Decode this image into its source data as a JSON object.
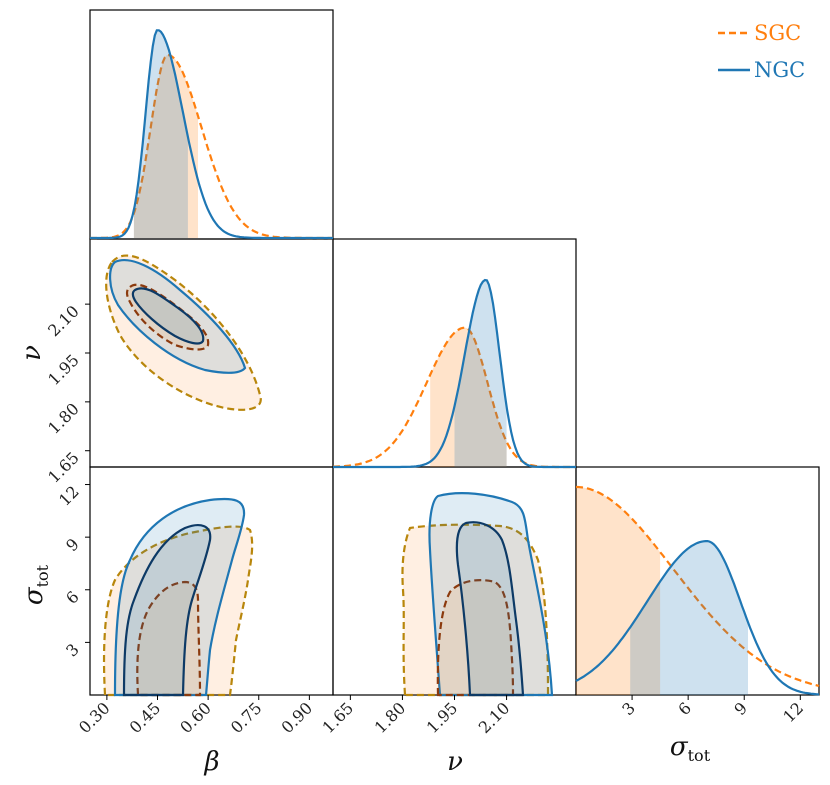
{
  "chart_data": {
    "type": "corner-plot",
    "parameters": [
      {
        "symbol": "β",
        "sub": "",
        "range": [
          0.25,
          0.97
        ],
        "ticks": [
          "0.30",
          "0.45",
          "0.60",
          "0.75",
          "0.90"
        ],
        "tick_values": [
          0.3,
          0.45,
          0.6,
          0.75,
          0.9
        ]
      },
      {
        "symbol": "ν",
        "sub": "",
        "range": [
          1.6,
          2.3
        ],
        "ticks": [
          "1.65",
          "1.80",
          "1.95",
          "2.10"
        ],
        "tick_values": [
          1.65,
          1.8,
          1.95,
          2.1
        ]
      },
      {
        "symbol": "σ",
        "sub": "tot",
        "range": [
          0,
          13
        ],
        "ticks": [
          "3",
          "6",
          "9",
          "12"
        ],
        "tick_values": [
          3,
          6,
          9,
          12
        ]
      }
    ],
    "series": [
      {
        "name": "SGC",
        "color": "#ff7f0e",
        "contour_color": "#b8860b",
        "inner_color": "#8b3a0e",
        "linestyle": "dashed",
        "marginals": {
          "beta": {
            "mode": 0.48,
            "sigma_left": 0.05,
            "sigma_right": 0.1,
            "interval": [
              0.38,
              0.57
            ],
            "peak": 0.88
          },
          "nu": {
            "mode": 1.98,
            "sigma_left": 0.11,
            "sigma_right": 0.065,
            "interval": [
              1.88,
              2.1
            ],
            "peak": 0.67
          },
          "sigma": {
            "mode": 0.0,
            "sigma_left": 1.0,
            "sigma_right": 5.2,
            "interval": [
              0.0,
              4.5
            ],
            "peak": 1.0
          }
        }
      },
      {
        "name": "NGC",
        "color": "#1f77b4",
        "contour_color": "#1f77b4",
        "inner_color": "#0d3a66",
        "linestyle": "solid",
        "marginals": {
          "beta": {
            "mode": 0.45,
            "sigma_left": 0.035,
            "sigma_right": 0.075,
            "interval": [
              0.38,
              0.54
            ],
            "peak": 1.0
          },
          "nu": {
            "mode": 2.04,
            "sigma_left": 0.06,
            "sigma_right": 0.04,
            "interval": [
              1.95,
              2.1
            ],
            "peak": 0.9
          },
          "sigma": {
            "mode": 7.0,
            "sigma_left": 3.2,
            "sigma_right": 1.8,
            "interval": [
              2.9,
              9.2
            ],
            "peak": 0.74
          }
        }
      }
    ],
    "legend": {
      "location": "top-right",
      "entries": [
        "SGC",
        "NGC"
      ]
    }
  }
}
